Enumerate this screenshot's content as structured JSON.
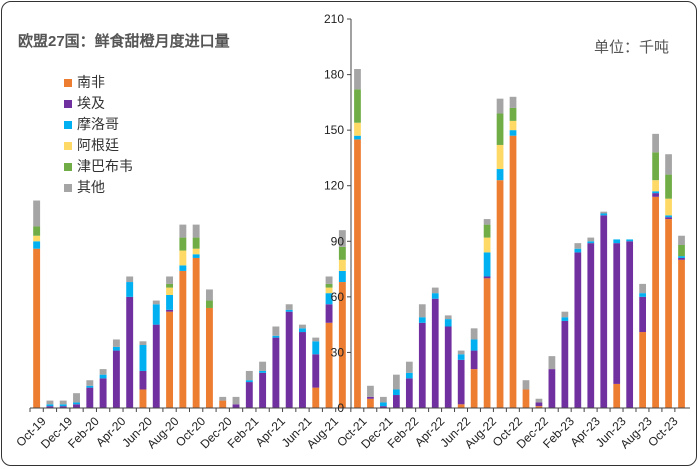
{
  "chart_data": {
    "type": "bar",
    "stacked": true,
    "title": "欧盟27国：鲜食甜橙月度进口量",
    "unit_label": "单位：千吨",
    "ylim": [
      0,
      210
    ],
    "yticks": [
      0,
      30,
      60,
      90,
      120,
      150,
      180,
      210
    ],
    "grid": false,
    "legend_position": "top-left",
    "colors": {
      "南非": "#ED7D31",
      "埃及": "#7030A0",
      "摩洛哥": "#00B0F0",
      "阿根廷": "#FFD966",
      "津巴布韦": "#70AD47",
      "其他": "#A5A5A5"
    },
    "series_names": [
      "南非",
      "埃及",
      "摩洛哥",
      "阿根廷",
      "津巴布韦",
      "其他"
    ],
    "x_tick_labels": [
      "Oct-19",
      "Dec-19",
      "Feb-20",
      "Apr-20",
      "Jun-20",
      "Aug-20",
      "Oct-20",
      "Dec-20",
      "Feb-21",
      "Apr-21",
      "Jun-21",
      "Aug-21",
      "Oct-21",
      "Dec-21",
      "Feb-22",
      "Apr-22",
      "Jun-22",
      "Aug-22",
      "Oct-22",
      "Dec-22",
      "Feb-23",
      "Apr-23",
      "Jun-23",
      "Aug-23",
      "Oct-23"
    ],
    "categories": [
      "Oct-19",
      "Nov-19",
      "Dec-19",
      "Jan-20",
      "Feb-20",
      "Mar-20",
      "Apr-20",
      "May-20",
      "Jun-20",
      "Jul-20",
      "Aug-20",
      "Sep-20",
      "Oct-20",
      "Nov-20",
      "Dec-20",
      "Jan-21",
      "Feb-21",
      "Mar-21",
      "Apr-21",
      "May-21",
      "Jun-21",
      "Jul-21",
      "Aug-21",
      "Sep-21",
      "Oct-21",
      "Nov-21",
      "Dec-21",
      "Jan-22",
      "Feb-22",
      "Mar-22",
      "Apr-22",
      "May-22",
      "Jun-22",
      "Jul-22",
      "Aug-22",
      "Sep-22",
      "Oct-22",
      "Nov-22",
      "Dec-22",
      "Jan-23",
      "Feb-23",
      "Mar-23",
      "Apr-23",
      "May-23",
      "Jun-23",
      "Jul-23",
      "Aug-23",
      "Sep-23",
      "Oct-23",
      "Nov-23"
    ],
    "panels": [
      {
        "first_category": 0,
        "count": 24,
        "series": [
          {
            "name": "南非",
            "values": [
              86,
              0,
              0,
              0,
              0,
              0,
              0,
              0,
              10,
              0,
              52,
              74,
              81,
              54,
              4,
              0,
              0,
              0,
              0,
              0,
              0,
              11,
              46,
              68
            ]
          },
          {
            "name": "埃及",
            "values": [
              0,
              1,
              1,
              2,
              11,
              16,
              31,
              60,
              10,
              45,
              1,
              0,
              0,
              0,
              0,
              2,
              14,
              19,
              38,
              52,
              41,
              18,
              10,
              0
            ]
          },
          {
            "name": "摩洛哥",
            "values": [
              4,
              1,
              1,
              1,
              1,
              2,
              2,
              8,
              14,
              11,
              8,
              3,
              2,
              0,
              0,
              0,
              1,
              1,
              1,
              1,
              2,
              7,
              6,
              6
            ]
          },
          {
            "name": "阿根廷",
            "values": [
              3,
              0,
              0,
              0,
              0,
              0,
              0,
              0,
              0,
              0,
              4,
              8,
              3,
              0,
              0,
              0,
              0,
              0,
              0,
              0,
              0,
              0,
              3,
              6
            ]
          },
          {
            "name": "津巴布韦",
            "values": [
              5,
              0,
              0,
              0,
              0,
              0,
              0,
              0,
              0,
              0,
              2,
              7,
              6,
              4,
              0,
              0,
              0,
              0,
              0,
              0,
              0,
              0,
              2,
              7
            ]
          },
          {
            "name": "其他",
            "values": [
              14,
              2,
              2,
              5,
              3,
              3,
              4,
              3,
              2,
              2,
              4,
              7,
              7,
              6,
              2,
              4,
              5,
              5,
              5,
              3,
              2,
              2,
              4,
              9
            ]
          }
        ]
      },
      {
        "first_category": 24,
        "count": 26,
        "series": [
          {
            "name": "南非",
            "values": [
              145,
              5,
              0,
              0,
              0,
              0,
              0,
              0,
              2,
              21,
              70,
              123,
              147,
              10,
              1,
              0,
              0,
              0,
              0,
              0,
              13,
              0,
              41,
              114,
              102,
              80
            ]
          },
          {
            "name": "埃及",
            "values": [
              0,
              1,
              1,
              7,
              16,
              46,
              59,
              44,
              24,
              10,
              1,
              0,
              0,
              0,
              2,
              21,
              47,
              84,
              89,
              104,
              76,
              90,
              19,
              2,
              1,
              1
            ]
          },
          {
            "name": "摩洛哥",
            "values": [
              2,
              0,
              2,
              3,
              3,
              3,
              3,
              4,
              3,
              6,
              13,
              6,
              3,
              0,
              0,
              0,
              2,
              2,
              1,
              1,
              2,
              1,
              2,
              1,
              1,
              1
            ]
          },
          {
            "name": "阿根廷",
            "values": [
              7,
              0,
              0,
              0,
              0,
              0,
              0,
              0,
              0,
              0,
              8,
              13,
              5,
              0,
              0,
              0,
              0,
              0,
              0,
              0,
              0,
              0,
              0,
              6,
              9,
              0
            ]
          },
          {
            "name": "津巴布韦",
            "values": [
              18,
              0,
              0,
              0,
              0,
              0,
              0,
              0,
              0,
              0,
              7,
              17,
              7,
              0,
              0,
              0,
              0,
              0,
              0,
              0,
              0,
              0,
              0,
              15,
              13,
              6
            ]
          },
          {
            "name": "其他",
            "values": [
              11,
              6,
              3,
              8,
              6,
              7,
              3,
              2,
              2,
              6,
              3,
              8,
              6,
              5,
              2,
              7,
              3,
              3,
              2,
              1,
              0,
              0,
              5,
              10,
              11,
              5
            ]
          }
        ]
      }
    ]
  }
}
